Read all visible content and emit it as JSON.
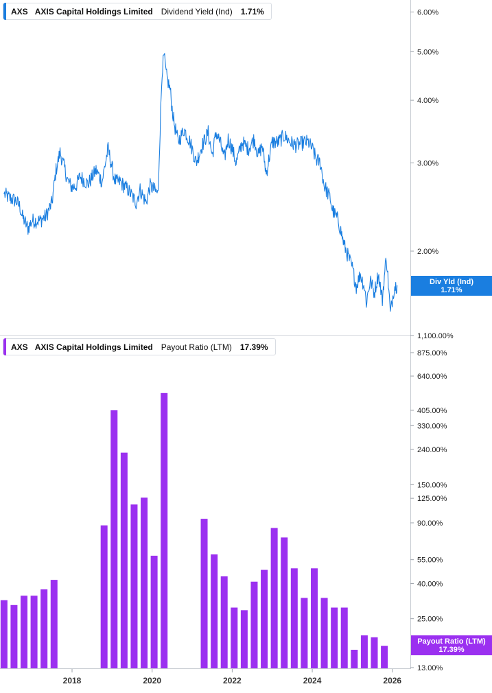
{
  "chart_data": [
    {
      "type": "line",
      "ticker": "AXS",
      "company": "AXIS Capital Holdings Limited",
      "metric": "Dividend Yield (Ind)",
      "current_value": "1.71%",
      "tag_label": "Div Yld (Ind)",
      "color": "#1a7ee0",
      "y_scale": "log",
      "y_ticks": [
        "6.00%",
        "5.00%",
        "4.00%",
        "3.00%",
        "2.00%"
      ],
      "y_tick_values": [
        6.0,
        5.0,
        4.0,
        3.0,
        2.0
      ],
      "ylim": [
        1.37,
        6.3
      ],
      "x": [
        2016.3,
        2016.45,
        2016.6,
        2016.7,
        2016.75,
        2016.9,
        2017.0,
        2017.2,
        2017.35,
        2017.5,
        2017.6,
        2017.7,
        2017.9,
        2018.0,
        2018.1,
        2018.2,
        2018.4,
        2018.6,
        2018.75,
        2018.9,
        2019.05,
        2019.1,
        2019.2,
        2019.4,
        2019.6,
        2019.7,
        2019.85,
        2019.95,
        2020.05,
        2020.15,
        2020.2,
        2020.25,
        2020.3,
        2020.35,
        2020.45,
        2020.5,
        2020.55,
        2020.65,
        2020.8,
        2020.95,
        2021.1,
        2021.25,
        2021.4,
        2021.5,
        2021.6,
        2021.7,
        2021.8,
        2021.9,
        2022.0,
        2022.1,
        2022.25,
        2022.4,
        2022.55,
        2022.65,
        2022.75,
        2022.85,
        2023.0,
        2023.15,
        2023.3,
        2023.45,
        2023.6,
        2023.8,
        2023.9,
        2024.0,
        2024.1,
        2024.2,
        2024.3,
        2024.45,
        2024.5,
        2024.65,
        2024.8,
        2024.9,
        2025.0,
        2025.1,
        2025.2,
        2025.3,
        2025.35,
        2025.45,
        2025.55,
        2025.65,
        2025.75,
        2025.85,
        2025.95,
        2026.05,
        2026.12
      ],
      "values": [
        2.6,
        2.55,
        2.52,
        2.45,
        2.35,
        2.22,
        2.3,
        2.3,
        2.35,
        2.5,
        2.9,
        3.15,
        2.75,
        2.68,
        2.7,
        2.82,
        2.72,
        2.9,
        2.75,
        3.2,
        2.8,
        2.75,
        2.75,
        2.65,
        2.5,
        2.65,
        2.5,
        2.7,
        2.65,
        2.6,
        3.5,
        4.6,
        4.9,
        4.5,
        4.2,
        3.85,
        3.6,
        3.3,
        3.5,
        3.3,
        3.0,
        3.25,
        3.45,
        3.1,
        3.45,
        3.3,
        3.05,
        3.35,
        3.2,
        3.0,
        3.3,
        3.2,
        3.35,
        3.1,
        3.25,
        2.85,
        3.3,
        3.3,
        3.4,
        3.3,
        3.25,
        3.3,
        3.3,
        3.2,
        3.05,
        3.0,
        2.7,
        2.55,
        2.42,
        2.3,
        2.05,
        1.95,
        1.85,
        1.7,
        1.8,
        1.7,
        1.58,
        1.75,
        1.65,
        1.8,
        1.6,
        1.95,
        1.5,
        1.7,
        1.71
      ]
    },
    {
      "type": "bar",
      "ticker": "AXS",
      "company": "AXIS Capital Holdings Limited",
      "metric": "Payout Ratio (LTM)",
      "current_value": "17.39%",
      "tag_label": "Payout Ratio (LTM)",
      "color": "#9b30f0",
      "y_scale": "log",
      "y_ticks": [
        "1,100.00%",
        "875.00%",
        "640.00%",
        "405.00%",
        "330.00%",
        "240.00%",
        "150.00%",
        "125.00%",
        "90.00%",
        "55.00%",
        "40.00%",
        "25.00%",
        "13.00%"
      ],
      "y_tick_values": [
        1100,
        875,
        640,
        405,
        330,
        240,
        150,
        125,
        90,
        55,
        40,
        25,
        13
      ],
      "ylim": [
        13,
        1100
      ],
      "x": [
        2016.3,
        2016.55,
        2016.8,
        2017.05,
        2017.3,
        2017.55,
        2018.8,
        2019.05,
        2019.3,
        2019.55,
        2019.8,
        2020.05,
        2020.3,
        2021.3,
        2021.55,
        2021.8,
        2022.05,
        2022.3,
        2022.55,
        2022.8,
        2023.05,
        2023.3,
        2023.55,
        2023.8,
        2024.05,
        2024.3,
        2024.55,
        2024.8,
        2025.05,
        2025.3,
        2025.55,
        2025.8
      ],
      "values": [
        32,
        30,
        34,
        34,
        37,
        42,
        87,
        405,
        230,
        115,
        126,
        58,
        510,
        95,
        59,
        44,
        29,
        28,
        41,
        48,
        84,
        74,
        49,
        33,
        49,
        33,
        29,
        29,
        16.5,
        20,
        19.5,
        17.4
      ]
    }
  ],
  "x_axis": {
    "ticks": [
      "2018",
      "2020",
      "2022",
      "2024",
      "2026"
    ],
    "tick_values": [
      2018,
      2020,
      2022,
      2024,
      2026
    ],
    "xlim": [
      2016.2,
      2026.45
    ]
  }
}
